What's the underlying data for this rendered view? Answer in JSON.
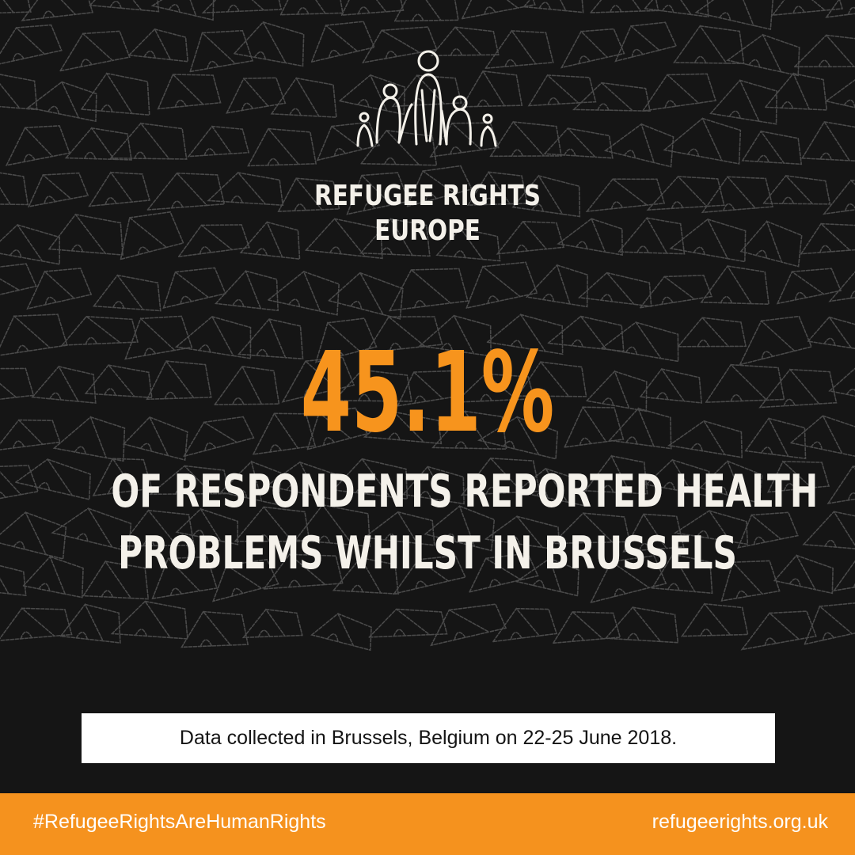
{
  "brand": {
    "name_line1": "REFUGEE RIGHTS",
    "name_line2": "EUROPE",
    "logo_icon": "refugee-family-figures-icon"
  },
  "statistic": {
    "value": "45.1%",
    "caption_line1": "OF RESPONDENTS REPORTED HEALTH",
    "caption_line2": "PROBLEMS WHILST IN BRUSSELS"
  },
  "data_note": "Data collected in Brussels, Belgium on 22-25 June 2018.",
  "footer": {
    "hashtag": "#RefugeeRightsAreHumanRights",
    "website": "refugeerights.org.uk"
  },
  "colors": {
    "background": "#151515",
    "accent_orange": "#f7941d",
    "footer_orange": "#f5921e",
    "text_light": "#f4f1ea",
    "pattern_line": "#4a4a4a"
  },
  "background_pattern_icon": "tent-pattern-icon"
}
